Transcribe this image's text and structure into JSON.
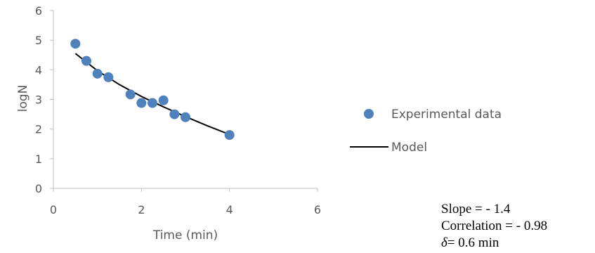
{
  "chart_data": {
    "type": "scatter",
    "xlabel": "Time (min)",
    "ylabel": "logN",
    "xlim": [
      0,
      6
    ],
    "ylim": [
      0,
      6
    ],
    "xticks": [
      "0",
      "2",
      "4",
      "6"
    ],
    "yticks": [
      "0",
      "1",
      "2",
      "3",
      "4",
      "5",
      "6"
    ],
    "grid": false,
    "legend_position": "right",
    "series": [
      {
        "name": "Experimental data",
        "kind": "scatter",
        "color": "#4F81BD",
        "x": [
          0.5,
          0.75,
          1.0,
          1.25,
          1.75,
          2.0,
          2.25,
          2.5,
          2.75,
          3.0,
          4.0
        ],
        "y": [
          4.88,
          4.3,
          3.87,
          3.75,
          3.17,
          2.88,
          2.88,
          2.97,
          2.5,
          2.4,
          1.8
        ]
      },
      {
        "name": "Model",
        "kind": "line",
        "color": "#000000",
        "x": [
          0.5,
          1.0,
          1.5,
          2.0,
          2.5,
          3.0,
          3.5,
          4.0
        ],
        "y": [
          4.55,
          3.97,
          3.5,
          3.1,
          2.75,
          2.42,
          2.11,
          1.82
        ]
      }
    ]
  },
  "stats": {
    "slope": "Slope = - 1.4",
    "correlation": "Correlation = - 0.98",
    "delta_symbol": "δ",
    "delta_value": "= 0.6 min"
  }
}
